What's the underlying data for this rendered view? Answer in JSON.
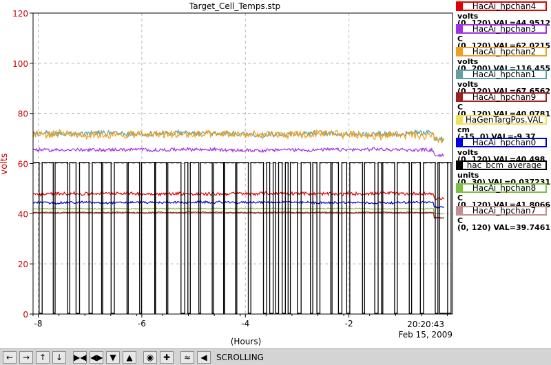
{
  "chart_data": {
    "type": "line",
    "title": "Target_Cell_Temps.stp",
    "ylabel": "volts",
    "xlabel": "(Hours)",
    "ylim": [
      0,
      120
    ],
    "xlim": [
      -8.1,
      0
    ],
    "y_ticks": [
      0,
      20,
      40,
      60,
      80,
      100,
      120
    ],
    "x_ticks": [
      -8,
      -6,
      -4,
      -2
    ],
    "grid": true,
    "current_time": "20:20:43",
    "current_date": "Feb 15, 2009",
    "series": [
      {
        "name": "HacAi_hpchan4",
        "unit": "volts",
        "range": "(0, 120)",
        "current": "VAL=44.9512",
        "color": "#e00000",
        "level": 48,
        "noise": 0.6
      },
      {
        "name": "HacAi_hpchan3",
        "unit": "C",
        "range": "(0, 120)",
        "current": "VAL=62.0215",
        "color": "#a030e0",
        "level": 65.5,
        "noise": 0.6
      },
      {
        "name": "HacAi_hpchan2",
        "unit": "volts",
        "range": "(0, 200)",
        "current": "VAL=116.455",
        "color": "#f0a020",
        "level": 71.5,
        "noise": 1.4
      },
      {
        "name": "HacAi_hpchan1",
        "unit": "volts",
        "range": "(0, 120)",
        "current": "VAL=67.6562",
        "color": "#60a0a0",
        "level": 72,
        "noise": 1.0
      },
      {
        "name": "HacAi_hpchan9",
        "unit": "C",
        "range": "(0, 120)",
        "current": "VAL=40.0781",
        "color": "#a02020",
        "level": 40.5,
        "noise": 0.2
      },
      {
        "name": "HaGenTargPos.VAL",
        "unit": "cm",
        "range": "(-15, 0)",
        "current": "VAL=-9.37",
        "color": "#f0e060",
        "level": 60,
        "noise": 0
      },
      {
        "name": "HacAi_hpchan0",
        "unit": "volts",
        "range": "(0, 120)",
        "current": "VAL=40.498",
        "color": "#0000e0",
        "level": 44.5,
        "noise": 0.4
      },
      {
        "name": "hac_bcm_average",
        "unit": "units",
        "range": "(0, 30)",
        "current": "VAL=0.0372313",
        "color": "#000000",
        "level": 60.5,
        "noise": 0.2
      },
      {
        "name": "HacAi_hpchan8",
        "unit": "C",
        "range": "(0, 120)",
        "current": "VAL=41.8066",
        "color": "#80c040",
        "level": 42,
        "noise": 0.2
      },
      {
        "name": "HacAi_hpchan7",
        "unit": "C",
        "range": "(0, 120)",
        "current": "VAL=39.7461",
        "color": "#c09090",
        "level": 40.2,
        "noise": 0.2
      }
    ]
  },
  "toolbar": {
    "buttons": [
      "arrow-left-icon",
      "arrow-right-icon",
      "arrow-up-icon",
      "arrow-down-icon",
      "expand-horizontal-icon",
      "compress-horizontal-icon",
      "expand-vertical-icon",
      "compress-vertical-icon",
      "record-icon",
      "add-icon",
      "autoscale-icon",
      "export-icon"
    ],
    "status": "SCROLLING"
  }
}
